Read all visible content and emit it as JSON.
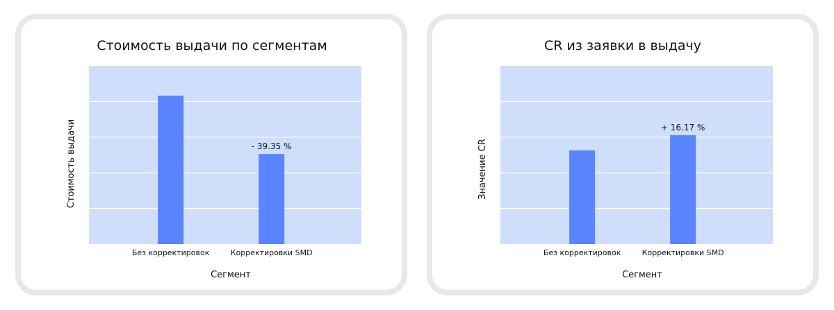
{
  "colors": {
    "plot_background": "#cfdffb",
    "gridline": "#ffffff",
    "bar": "#5b84ff",
    "card_border": "#e8e8e8"
  },
  "chart_data": [
    {
      "type": "bar",
      "title": "Стоимость выдачи по сегментам",
      "xlabel": "Сегмент",
      "ylabel": "Стоимость выдачи",
      "categories": [
        "Без корректировок",
        "Корректировки SMD"
      ],
      "values": [
        100,
        60.65
      ],
      "data_labels": [
        "",
        "- 39.35 %"
      ],
      "ylim": [
        0,
        120
      ],
      "grid": true,
      "y_tick_labels_shown": false
    },
    {
      "type": "bar",
      "title": "CR из заявки в выдачу",
      "xlabel": "Сегмент",
      "ylabel": "Значение CR",
      "categories": [
        "Без корректировок",
        "Корректировки SMD"
      ],
      "values": [
        100,
        116.17
      ],
      "data_labels": [
        "",
        "+ 16.17 %"
      ],
      "ylim": [
        0,
        190
      ],
      "grid": true,
      "y_tick_labels_shown": false
    }
  ]
}
